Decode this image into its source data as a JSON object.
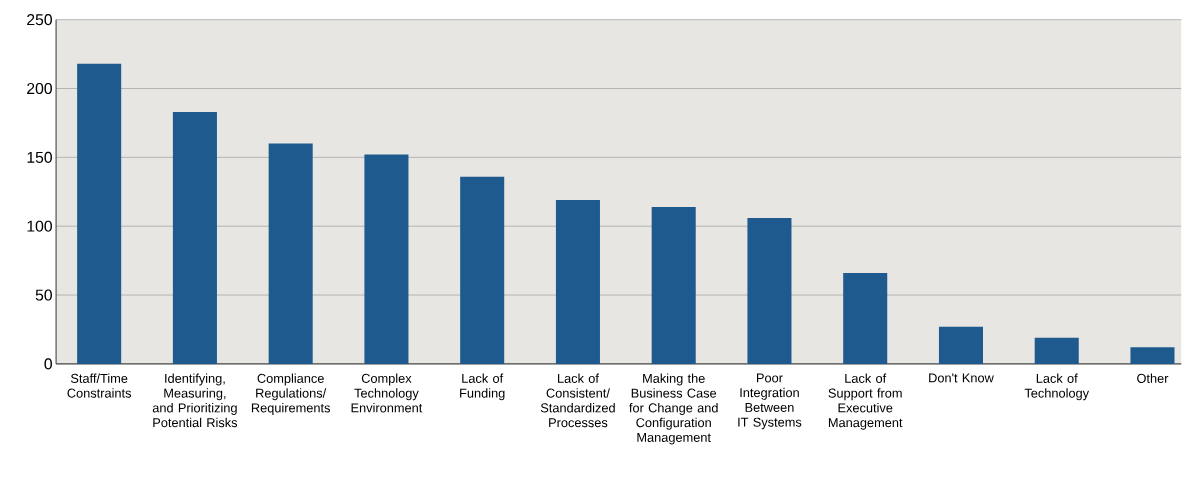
{
  "chart_data": {
    "type": "bar",
    "categories": [
      "Staff/Time Constraints",
      "Identifying, Measuring, and Prioritizing Potential Risks",
      "Compliance Regulations/ Requirements",
      "Complex Technology Environment",
      "Lack of Funding",
      "Lack of Consistent/ Standardized Processes",
      "Making the Business Case for Change and Configuration Management",
      "Poor Integration Between IT Systems",
      "Lack of Support from Executive Management",
      "Don't Know",
      "Lack of Technology",
      "Other"
    ],
    "values": [
      218,
      183,
      160,
      152,
      136,
      119,
      114,
      106,
      66,
      27,
      19,
      12
    ],
    "color": "#1f5a8f",
    "ylim": [
      0,
      250
    ],
    "yticks": [
      0,
      50,
      100,
      150,
      200,
      250
    ],
    "grid": "y"
  }
}
